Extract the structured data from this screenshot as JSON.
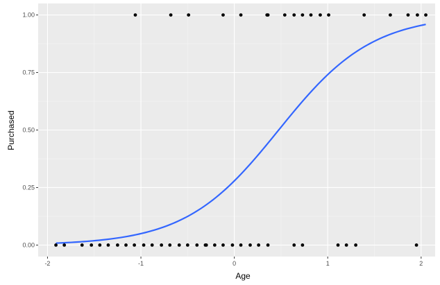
{
  "chart_data": {
    "type": "scatter",
    "xlabel": "Age",
    "ylabel": "Purchased",
    "xlim": [
      -2.1,
      2.15
    ],
    "ylim": [
      -0.05,
      1.05
    ],
    "x_ticks": [
      {
        "value": -2,
        "label": "-2"
      },
      {
        "value": -1,
        "label": "-1"
      },
      {
        "value": 0,
        "label": "0"
      },
      {
        "value": 1,
        "label": "1"
      },
      {
        "value": 2,
        "label": "2"
      }
    ],
    "y_ticks": [
      {
        "value": 0,
        "label": "0.00"
      },
      {
        "value": 0.25,
        "label": "0.25"
      },
      {
        "value": 0.5,
        "label": "0.50"
      },
      {
        "value": 0.75,
        "label": "0.75"
      },
      {
        "value": 1,
        "label": "1.00"
      }
    ],
    "grid": true,
    "points": {
      "x_at_1": [
        -1.06,
        -0.68,
        -0.49,
        -0.12,
        0.07,
        0.35,
        0.36,
        0.54,
        0.64,
        0.73,
        0.82,
        0.92,
        1.01,
        1.39,
        1.67,
        1.86,
        1.96,
        2.05
      ],
      "x_at_0": [
        -1.91,
        -1.82,
        -1.63,
        -1.53,
        -1.44,
        -1.35,
        -1.25,
        -1.16,
        -1.07,
        -0.97,
        -0.88,
        -0.78,
        -0.69,
        -0.59,
        -0.5,
        -0.4,
        -0.31,
        -0.3,
        -0.21,
        -0.12,
        -0.02,
        0.07,
        0.17,
        0.26,
        0.36,
        0.64,
        0.73,
        1.11,
        1.2,
        1.3,
        1.95
      ]
    },
    "series": [
      {
        "type": "logistic_fit",
        "intercept": -0.95,
        "slope": 2.0,
        "x_range": [
          -1.91,
          2.05
        ],
        "color": "#3366FF"
      }
    ],
    "colors": {
      "panel": "#EBEBEB",
      "grid_major": "#FFFFFF",
      "grid_minor": "#F5F5F5",
      "points": "#000000",
      "line": "#3366FF"
    }
  }
}
